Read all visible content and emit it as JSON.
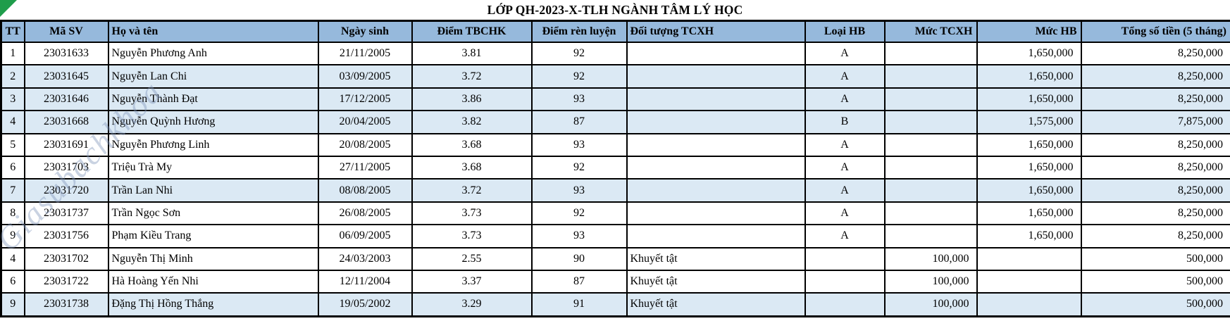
{
  "title": "LỚP QH-2023-X-TLH NGÀNH TÂM LÝ HỌC",
  "watermark": "Giasubachkhoa",
  "colors": {
    "header_fill": "#96B9DC",
    "alt_row_fill": "#DBE9F4",
    "grid_border": "#000000",
    "triangle_green": "#1F9D4B"
  },
  "table": {
    "columns": [
      "TT",
      "Mã SV",
      "Họ và tên",
      "Ngày sinh",
      "Điểm TBCHK",
      "Điểm rèn luyện",
      "Đối tượng TCXH",
      "Loại HB",
      "Mức TCXH",
      "Mức HB",
      "Tổng số tiền (5 tháng)"
    ],
    "error_triangle_columns": [
      1,
      2,
      3,
      4,
      10
    ],
    "rows": [
      {
        "tt": "1",
        "masv": "23031633",
        "hoten": "Nguyễn Phương Anh",
        "ngaysinh": "21/11/2005",
        "diem_tbchk": "3.81",
        "diem_ren_luyen": "92",
        "doi_tuong_tcxh": "",
        "loai_hb": "A",
        "muc_tcxh": "",
        "muc_hb": "1,650,000",
        "tong": "8,250,000",
        "shaded": false
      },
      {
        "tt": "2",
        "masv": "23031645",
        "hoten": "Nguyễn Lan Chi",
        "ngaysinh": "03/09/2005",
        "diem_tbchk": "3.72",
        "diem_ren_luyen": "92",
        "doi_tuong_tcxh": "",
        "loai_hb": "A",
        "muc_tcxh": "",
        "muc_hb": "1,650,000",
        "tong": "8,250,000",
        "shaded": true
      },
      {
        "tt": "3",
        "masv": "23031646",
        "hoten": "Nguyễn Thành Đạt",
        "ngaysinh": "17/12/2005",
        "diem_tbchk": "3.86",
        "diem_ren_luyen": "93",
        "doi_tuong_tcxh": "",
        "loai_hb": "A",
        "muc_tcxh": "",
        "muc_hb": "1,650,000",
        "tong": "8,250,000",
        "shaded": true
      },
      {
        "tt": "4",
        "masv": "23031668",
        "hoten": "Nguyễn Quỳnh Hương",
        "ngaysinh": "20/04/2005",
        "diem_tbchk": "3.82",
        "diem_ren_luyen": "87",
        "doi_tuong_tcxh": "",
        "loai_hb": "B",
        "muc_tcxh": "",
        "muc_hb": "1,575,000",
        "tong": "7,875,000",
        "shaded": true
      },
      {
        "tt": "5",
        "masv": "23031691",
        "hoten": "Nguyễn Phương Linh",
        "ngaysinh": "20/08/2005",
        "diem_tbchk": "3.68",
        "diem_ren_luyen": "93",
        "doi_tuong_tcxh": "",
        "loai_hb": "A",
        "muc_tcxh": "",
        "muc_hb": "1,650,000",
        "tong": "8,250,000",
        "shaded": false
      },
      {
        "tt": "6",
        "masv": "23031703",
        "hoten": "Triệu Trà My",
        "ngaysinh": "27/11/2005",
        "diem_tbchk": "3.68",
        "diem_ren_luyen": "92",
        "doi_tuong_tcxh": "",
        "loai_hb": "A",
        "muc_tcxh": "",
        "muc_hb": "1,650,000",
        "tong": "8,250,000",
        "shaded": false
      },
      {
        "tt": "7",
        "masv": "23031720",
        "hoten": "Trần Lan Nhi",
        "ngaysinh": "08/08/2005",
        "diem_tbchk": "3.72",
        "diem_ren_luyen": "93",
        "doi_tuong_tcxh": "",
        "loai_hb": "A",
        "muc_tcxh": "",
        "muc_hb": "1,650,000",
        "tong": "8,250,000",
        "shaded": true
      },
      {
        "tt": "8",
        "masv": "23031737",
        "hoten": "Trần Ngọc Sơn",
        "ngaysinh": "26/08/2005",
        "diem_tbchk": "3.73",
        "diem_ren_luyen": "92",
        "doi_tuong_tcxh": "",
        "loai_hb": "A",
        "muc_tcxh": "",
        "muc_hb": "1,650,000",
        "tong": "8,250,000",
        "shaded": false
      },
      {
        "tt": "9",
        "masv": "23031756",
        "hoten": "Phạm Kiều Trang",
        "ngaysinh": "06/09/2005",
        "diem_tbchk": "3.73",
        "diem_ren_luyen": "93",
        "doi_tuong_tcxh": "",
        "loai_hb": "A",
        "muc_tcxh": "",
        "muc_hb": "1,650,000",
        "tong": "8,250,000",
        "shaded": false
      },
      {
        "tt": "4",
        "masv": "23031702",
        "hoten": "Nguyễn Thị Minh",
        "ngaysinh": "24/03/2003",
        "diem_tbchk": "2.55",
        "diem_ren_luyen": "90",
        "doi_tuong_tcxh": "Khuyết tật",
        "loai_hb": "",
        "muc_tcxh": "100,000",
        "muc_hb": "",
        "tong": "500,000",
        "shaded": false
      },
      {
        "tt": "6",
        "masv": "23031722",
        "hoten": "Hà Hoàng Yến Nhi",
        "ngaysinh": "12/11/2004",
        "diem_tbchk": "3.37",
        "diem_ren_luyen": "87",
        "doi_tuong_tcxh": "Khuyết tật",
        "loai_hb": "",
        "muc_tcxh": "100,000",
        "muc_hb": "",
        "tong": "500,000",
        "shaded": false
      },
      {
        "tt": "9",
        "masv": "23031738",
        "hoten": "Đặng Thị Hồng Thắng",
        "ngaysinh": "19/05/2002",
        "diem_tbchk": "3.29",
        "diem_ren_luyen": "91",
        "doi_tuong_tcxh": "Khuyết tật",
        "loai_hb": "",
        "muc_tcxh": "100,000",
        "muc_hb": "",
        "tong": "500,000",
        "shaded": true
      }
    ]
  }
}
